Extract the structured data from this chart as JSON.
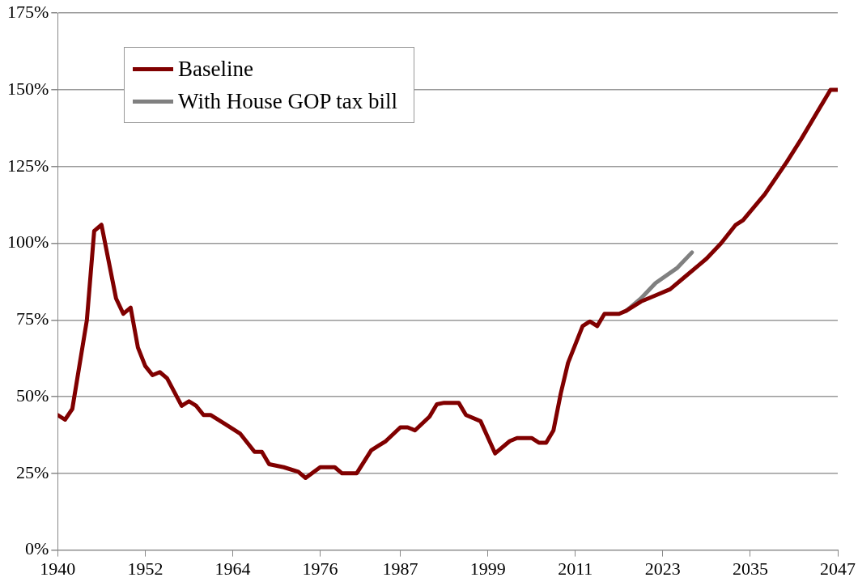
{
  "chart_data": {
    "type": "line",
    "xlim": [
      1940,
      2047
    ],
    "xticks": [
      1940,
      1952,
      1964,
      1976,
      1987,
      1999,
      2011,
      2023,
      2035,
      2047
    ],
    "ylim": [
      0,
      175
    ],
    "yticks": [
      {
        "value": 0,
        "label": "0%"
      },
      {
        "value": 25,
        "label": "25%"
      },
      {
        "value": 50,
        "label": "50%"
      },
      {
        "value": 75,
        "label": "75%"
      },
      {
        "value": 100,
        "label": "100%"
      },
      {
        "value": 125,
        "label": "125%"
      },
      {
        "value": 150,
        "label": "150%"
      },
      {
        "value": 175,
        "label": "175%"
      }
    ],
    "grid": "y",
    "legend": "top left",
    "marker": "none",
    "line_style": "solid",
    "series": [
      {
        "name": "Baseline",
        "color": "#800000",
        "x": [
          1940,
          1941,
          1942,
          1944,
          1945,
          1946,
          1948,
          1949,
          1950,
          1951,
          1952,
          1953,
          1954,
          1955,
          1957,
          1958,
          1959,
          1960,
          1961,
          1963,
          1965,
          1967,
          1968,
          1969,
          1971,
          1973,
          1974,
          1976,
          1978,
          1979,
          1981,
          1983,
          1984,
          1985,
          1987,
          1988,
          1989,
          1991,
          1992,
          1993,
          1995,
          1996,
          1998,
          2000,
          2002,
          2003,
          2005,
          2006,
          2007,
          2008,
          2009,
          2010,
          2011,
          2012,
          2013,
          2014,
          2015,
          2017,
          2018,
          2020,
          2022,
          2024,
          2026,
          2028,
          2029,
          2031,
          2033,
          2034,
          2037,
          2040,
          2042,
          2046,
          2047
        ],
        "values": [
          44,
          42.5,
          46,
          75,
          104,
          106,
          82,
          77,
          79,
          66,
          60,
          57,
          58,
          56,
          47,
          48.5,
          47,
          44,
          44,
          41,
          38,
          32,
          32,
          28,
          27,
          25.5,
          23.5,
          27,
          27,
          25,
          25,
          32.5,
          34,
          35.5,
          40,
          40,
          39,
          43.5,
          47.5,
          48,
          48,
          44,
          42,
          31.5,
          35.5,
          36.5,
          36.5,
          35,
          35,
          39,
          51,
          61,
          67,
          73,
          74.5,
          73,
          77,
          77,
          78,
          81,
          83,
          85,
          89,
          93,
          95,
          100,
          106,
          107.5,
          116,
          126.5,
          134,
          150,
          150
        ]
      },
      {
        "name": "With House GOP tax bill",
        "color": "#808080",
        "x": [
          2018,
          2020,
          2022,
          2025,
          2027
        ],
        "values": [
          78,
          82,
          87,
          92,
          97
        ]
      }
    ]
  }
}
